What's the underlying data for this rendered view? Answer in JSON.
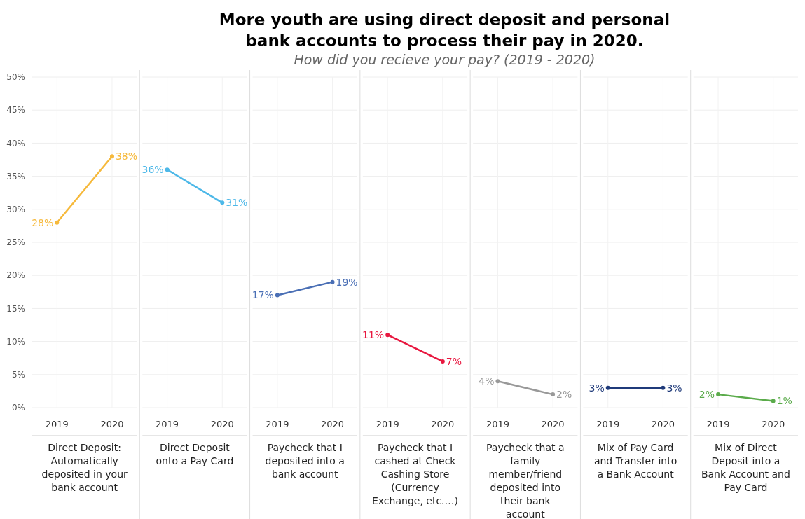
{
  "chart_data": [
    {
      "type": "other",
      "title": "More youth are using direct deposit and personal bank accounts to process their pay in 2020.",
      "subtitle": "How did you recieve your pay? (2019 - 2020)"
    },
    {
      "type": "line",
      "xlabel": "Direct Deposit: Automatically deposited in your bank account",
      "categories": [
        "2019",
        "2020"
      ],
      "values": [
        28,
        38
      ],
      "value_labels": [
        "28%",
        "38%"
      ],
      "color": "#f6b93b",
      "ylim": [
        0,
        50
      ],
      "yticks": [
        {
          "value": 0,
          "label": "0%"
        },
        {
          "value": 5,
          "label": "5%"
        },
        {
          "value": 10,
          "label": "10%"
        },
        {
          "value": 15,
          "label": "15%"
        },
        {
          "value": 20,
          "label": "20%"
        },
        {
          "value": 25,
          "label": "25%"
        },
        {
          "value": 30,
          "label": "30%"
        },
        {
          "value": 35,
          "label": "35%"
        },
        {
          "value": 40,
          "label": "40%"
        },
        {
          "value": 45,
          "label": "45%"
        },
        {
          "value": 50,
          "label": "50%"
        }
      ],
      "grid": true,
      "marker": "circle"
    },
    {
      "type": "line",
      "xlabel": "Direct Deposit onto a Pay Card",
      "categories": [
        "2019",
        "2020"
      ],
      "values": [
        36,
        31
      ],
      "value_labels": [
        "36%",
        "31%"
      ],
      "color": "#4db8e8",
      "ylim": [
        0,
        50
      ],
      "tick_labels": "x",
      "grid": true,
      "marker": "circle"
    },
    {
      "type": "line",
      "xlabel": "Paycheck that I deposited into a bank account",
      "categories": [
        "2019",
        "2020"
      ],
      "values": [
        17,
        19
      ],
      "value_labels": [
        "17%",
        "19%"
      ],
      "color": "#4a6fb5",
      "ylim": [
        0,
        50
      ],
      "tick_labels": "x",
      "grid": true,
      "marker": "circle"
    },
    {
      "type": "line",
      "xlabel": "Paycheck that I cashed at Check Cashing Store (Currency Exchange, etc.…)",
      "categories": [
        "2019",
        "2020"
      ],
      "values": [
        11,
        7
      ],
      "value_labels": [
        "11%",
        "7%"
      ],
      "color": "#e8173f",
      "ylim": [
        0,
        50
      ],
      "tick_labels": "x",
      "grid": true,
      "marker": "circle"
    },
    {
      "type": "line",
      "xlabel": "Paycheck that a family member/friend deposited into their bank account",
      "categories": [
        "2019",
        "2020"
      ],
      "values": [
        4,
        2
      ],
      "value_labels": [
        "4%",
        "2%"
      ],
      "color": "#999999",
      "ylim": [
        0,
        50
      ],
      "tick_labels": "x",
      "grid": true,
      "marker": "circle"
    },
    {
      "type": "line",
      "xlabel": "Mix of Pay Card and Transfer into a Bank Account",
      "categories": [
        "2019",
        "2020"
      ],
      "values": [
        3,
        3
      ],
      "value_labels": [
        "3%",
        "3%"
      ],
      "color": "#1f3a7a",
      "ylim": [
        0,
        50
      ],
      "tick_labels": "x",
      "grid": true,
      "marker": "circle"
    },
    {
      "type": "line",
      "xlabel": "Mix of Direct Deposit into a Bank Account and Pay Card",
      "categories": [
        "2019",
        "2020"
      ],
      "values": [
        2,
        1
      ],
      "value_labels": [
        "2%",
        "1%"
      ],
      "color": "#5aab4a",
      "ylim": [
        0,
        50
      ],
      "tick_labels": "x",
      "grid": true,
      "marker": "circle"
    }
  ]
}
